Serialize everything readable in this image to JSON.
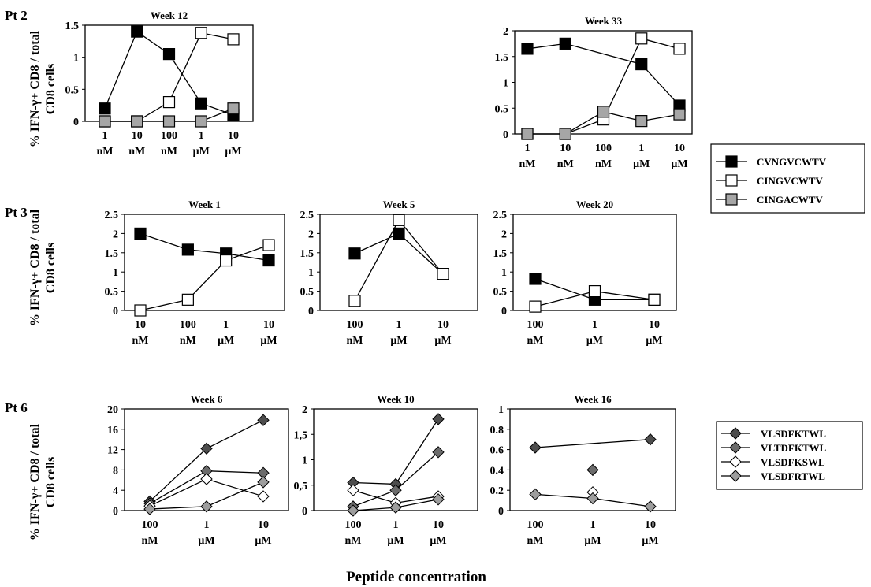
{
  "figure": {
    "ylabel_line1": "% IFN-γ+ CD8 / total",
    "ylabel_line2": "CD8 cells",
    "xlabel": "Peptide concentration",
    "rows": [
      {
        "label": "Pt 2"
      },
      {
        "label": "Pt 3"
      },
      {
        "label": "Pt 6"
      }
    ],
    "legends": [
      {
        "entries": [
          {
            "label": "CVNGVCWTV",
            "marker": "square",
            "color": "#000000"
          },
          {
            "label": "CINGVCWTV",
            "marker": "square",
            "color": "#ffffff"
          },
          {
            "label": "CINGACWTV",
            "marker": "square",
            "color": "#a6a6a6"
          }
        ]
      },
      {
        "entries": [
          {
            "label": "VLSDFKTWL",
            "marker": "diamond",
            "color": "#4d4d4d"
          },
          {
            "label": "VLTDFKTWL",
            "marker": "diamond",
            "color": "#6b6b6b"
          },
          {
            "label": "VLSDFKSWL",
            "marker": "diamond",
            "color": "#ffffff"
          },
          {
            "label": "VLSDFRTWL",
            "marker": "diamond",
            "color": "#9d9d9d"
          }
        ]
      }
    ]
  },
  "chart_data": [
    {
      "type": "line",
      "title": "Week 12",
      "row": "Pt 2",
      "categories": [
        "1 nM",
        "10 nM",
        "100 nM",
        "1 μM",
        "10 μM"
      ],
      "ylim": [
        0,
        1.5
      ],
      "yticks": [
        "0",
        "0.5",
        "1",
        "1.5"
      ],
      "grid": false,
      "series": [
        {
          "name": "CVNGVCWTV",
          "values": [
            0.2,
            1.4,
            1.05,
            0.28,
            0.1
          ]
        },
        {
          "name": "CINGVCWTV",
          "values": [
            0,
            0,
            0.3,
            1.38,
            1.28
          ]
        },
        {
          "name": "CINGACWTV",
          "values": [
            0,
            0,
            0,
            0,
            0.2
          ]
        }
      ]
    },
    {
      "type": "line",
      "title": "Week 33",
      "row": "Pt 2",
      "categories": [
        "1 nM",
        "10 nM",
        "100 nM",
        "1 μM",
        "10 μM"
      ],
      "ylim": [
        0,
        2
      ],
      "yticks": [
        "0",
        "0.5",
        "1",
        "1.5",
        "2"
      ],
      "grid": false,
      "series": [
        {
          "name": "CVNGVCWTV",
          "values": [
            1.65,
            1.75,
            null,
            1.35,
            0.55
          ]
        },
        {
          "name": "CINGVCWTV",
          "values": [
            0,
            0,
            0.28,
            1.85,
            1.65
          ]
        },
        {
          "name": "CINGACWTV",
          "values": [
            0,
            0,
            0.43,
            0.25,
            0.38
          ]
        }
      ]
    },
    {
      "type": "line",
      "title": "Week 1",
      "row": "Pt 3",
      "categories": [
        "10 nM",
        "100 nM",
        "1 μM",
        "10 μM"
      ],
      "x": [
        0,
        1,
        1.8,
        2.7
      ],
      "ylim": [
        0,
        2.5
      ],
      "yticks": [
        "0",
        "0.5",
        "1",
        "1.5",
        "2",
        "2.5"
      ],
      "grid": false,
      "series": [
        {
          "name": "CVNGVCWTV",
          "values": [
            2.0,
            1.58,
            1.48,
            1.3
          ]
        },
        {
          "name": "CINGVCWTV",
          "values": [
            0,
            0.28,
            1.3,
            1.7
          ]
        }
      ]
    },
    {
      "type": "line",
      "title": "Week 5",
      "row": "Pt 3",
      "categories": [
        "100 nM",
        "1 μM",
        "10 μM"
      ],
      "ylim": [
        0,
        2.5
      ],
      "yticks": [
        "0",
        "0.5",
        "1",
        "1.5",
        "2",
        "2.5"
      ],
      "grid": false,
      "series": [
        {
          "name": "CVNGVCWTV",
          "values": [
            1.48,
            2.0,
            0.95
          ]
        },
        {
          "name": "CINGVCWTV",
          "values": [
            0.25,
            2.35,
            0.95
          ]
        }
      ]
    },
    {
      "type": "line",
      "title": "Week 20",
      "row": "Pt 3",
      "categories": [
        "100 nM",
        "1 μM",
        "10 μM"
      ],
      "ylim": [
        0,
        2.5
      ],
      "yticks": [
        "0",
        "0.5",
        "1",
        "1.5",
        "2",
        "2.5"
      ],
      "grid": false,
      "series": [
        {
          "name": "CVNGVCWTV",
          "values": [
            0.82,
            0.28,
            0.28
          ]
        },
        {
          "name": "CINGVCWTV",
          "values": [
            0.1,
            0.5,
            0.28
          ]
        }
      ]
    },
    {
      "type": "line",
      "title": "Week 6",
      "row": "Pt 6",
      "categories": [
        "100 nM",
        "1 μM",
        "10 μM"
      ],
      "ylim": [
        0,
        20
      ],
      "yticks": [
        "0",
        "4",
        "8",
        "12",
        "16",
        "20"
      ],
      "grid": false,
      "series": [
        {
          "name": "VLSDFKTWL",
          "values": [
            1.8,
            12.2,
            17.8
          ]
        },
        {
          "name": "VLTDFKTWL",
          "values": [
            1.4,
            7.8,
            7.4
          ]
        },
        {
          "name": "VLSDFKSWL",
          "values": [
            0.9,
            6.2,
            2.8
          ]
        },
        {
          "name": "VLSDFRTWL",
          "values": [
            0.3,
            0.8,
            5.6
          ]
        }
      ]
    },
    {
      "type": "line",
      "title": "Week 10",
      "row": "Pt 6",
      "categories": [
        "100 nM",
        "1 μM",
        "10 μM"
      ],
      "ylim": [
        0,
        2
      ],
      "yticks": [
        "0",
        "0,5",
        "1",
        "1,5",
        "2"
      ],
      "grid": false,
      "series": [
        {
          "name": "VLSDFKTWL",
          "values": [
            0.55,
            0.52,
            1.8
          ]
        },
        {
          "name": "VLTDFKTWL",
          "values": [
            0.08,
            0.4,
            1.15
          ]
        },
        {
          "name": "VLSDFKSWL",
          "values": [
            0.4,
            0.15,
            0.28
          ]
        },
        {
          "name": "VLSDFRTWL",
          "values": [
            0.0,
            0.06,
            0.22
          ]
        }
      ]
    },
    {
      "type": "line",
      "title": "Week 16",
      "row": "Pt 6",
      "categories": [
        "100 nM",
        "1 μM",
        "10 μM"
      ],
      "ylim": [
        0,
        1
      ],
      "yticks": [
        "0",
        "0.2",
        "0.4",
        "0.6",
        "0.8",
        "1"
      ],
      "grid": false,
      "series": [
        {
          "name": "VLSDFKTWL",
          "values": [
            0.62,
            null,
            0.7
          ]
        },
        {
          "name": "VLTDFKTWL",
          "values": [
            null,
            0.4,
            null
          ]
        },
        {
          "name": "VLSDFKSWL",
          "values": [
            null,
            0.18,
            null
          ]
        },
        {
          "name": "VLSDFRTWL",
          "values": [
            0.16,
            0.12,
            0.04
          ]
        }
      ]
    }
  ]
}
